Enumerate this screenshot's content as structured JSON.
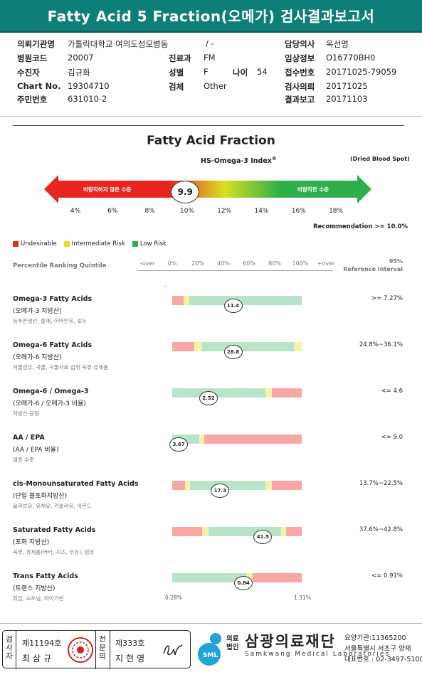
{
  "title": "Fatty Acid 5 Fraction(오메가) 검사결과보고서",
  "info": {
    "institution_label": "의뢰기관명",
    "institution": "가톨릭대학교 여의도성모병동",
    "ward_sep": "/ -",
    "doctor_label": "담당의사",
    "doctor": "옥선명",
    "hospital_code_label": "병원코드",
    "hospital_code": "20007",
    "dept_label": "진료과",
    "dept": "FM",
    "clinical_label": "임상정보",
    "clinical": "O16770BH0",
    "patient_label": "수진자",
    "patient": "김규화",
    "sex_label": "성별",
    "sex": "F",
    "age_label": "나이",
    "age": "54",
    "receipt_label": "접수번호",
    "receipt": "20171025-79059",
    "chart_label": "Chart No.",
    "chart": "19304710",
    "specimen_label": "검체",
    "specimen": "Other",
    "request_label": "검사의뢰",
    "request": "20171025",
    "ssn_label": "주민번호",
    "ssn": "631010-2",
    "report_label": "결과보고",
    "report": "20171103"
  },
  "fraction": {
    "title": "Fatty Acid Fraction",
    "subtitle": "HS-Omega-3 Index",
    "subtitle_sup": "®",
    "specimen_note": "(Dried Blood Spot)",
    "arrow_left": "바람직하지 않은 수준",
    "arrow_right": "바람직한 수준",
    "value": "9.9",
    "value_num": 9.9,
    "scale": [
      "4%",
      "6%",
      "8%",
      "10%",
      "12%",
      "14%",
      "16%",
      "18%"
    ],
    "recommendation": "Recommendation  >= 10.0%"
  },
  "legend": [
    {
      "label": "Undesirable",
      "color": "#e8251f"
    },
    {
      "label": "Intermediate Risk",
      "color": "#e3de21"
    },
    {
      "label": "Low Risk",
      "color": "#2db04b"
    }
  ],
  "percentile": {
    "label": "Percentile Ranking Quintile",
    "axis": [
      "-over",
      "0%",
      "20%",
      "40%",
      "60%",
      "80%",
      "100%",
      "+over"
    ],
    "ref_header_1": "95%",
    "ref_header_2": "Reference Interval"
  },
  "colors": {
    "red": "#f8a7a4",
    "yellow": "#f4f3a8",
    "green": "#b7e3c8",
    "arrow_red": "#e8251f",
    "arrow_yellow": "#d8e021",
    "arrow_green": "#2db04b"
  },
  "items": [
    {
      "name": "Omega-3 Fatty Acids",
      "kor": "(오메가-3 지방산)",
      "food": "등푸른생선, 들깨, 아마인유, 호두",
      "value": "11.4",
      "percentile": 47,
      "ref": ">= 7.27%",
      "segments": [
        [
          "red",
          9
        ],
        [
          "yellow",
          4
        ],
        [
          "green",
          87
        ]
      ]
    },
    {
      "name": "Omega-6 Fatty Acids",
      "kor": "(오메가-6 지방산)",
      "food": "식물성유, 곡물, 곡물사료 섭취 육류·유제품",
      "value": "28.8",
      "percentile": 47,
      "ref": "24.8%~36.1%",
      "segments": [
        [
          "red",
          17
        ],
        [
          "yellow",
          6
        ],
        [
          "green",
          71
        ],
        [
          "yellow",
          6
        ]
      ]
    },
    {
      "name": "Omega-6 / Omega-3",
      "kor": "(오메가-6 / 오메가-3 비율)",
      "food": "지방산 균형",
      "value": "2.52",
      "percentile": 28,
      "ref": "<= 4.6",
      "segments": [
        [
          "green",
          72
        ],
        [
          "yellow",
          5
        ],
        [
          "red",
          23
        ]
      ]
    },
    {
      "name": "AA / EPA",
      "kor": "(AA / EPA 비율)",
      "food": "염증 수준",
      "value": "3.67",
      "percentile": 5,
      "ref": "<= 9.0",
      "segments": [
        [
          "green",
          21
        ],
        [
          "yellow",
          4
        ],
        [
          "red",
          75
        ]
      ]
    },
    {
      "name": "cis-Monounsaturated Fatty Acids",
      "kor": "(단일 불포화지방산)",
      "food": "올리브유, 유채유, 카놀라유, 아몬드",
      "value": "17.3",
      "percentile": 37,
      "ref": "13.7%~22.5%",
      "segments": [
        [
          "red",
          10
        ],
        [
          "yellow",
          4
        ],
        [
          "green",
          58
        ],
        [
          "yellow",
          5
        ],
        [
          "red",
          23
        ]
      ]
    },
    {
      "name": "Saturated Fatty Acids",
      "kor": "(포화 지방산)",
      "food": "육류, 유제품(버터, 치즈, 우유), 팜유",
      "value": "41.5",
      "percentile": 70,
      "ref": "37.6%~42.8%",
      "segments": [
        [
          "red",
          23
        ],
        [
          "yellow",
          5
        ],
        [
          "green",
          56
        ],
        [
          "yellow",
          4
        ],
        [
          "red",
          12
        ]
      ]
    },
    {
      "name": "Trans Fatty Acids",
      "kor": "(트랜스 지방산)",
      "food": "튀김, 쇼트닝, 마아가린",
      "value": "0.84",
      "percentile": 55,
      "ref": "<= 0.91%",
      "segments": [
        [
          "green",
          57
        ],
        [
          "yellow",
          5
        ],
        [
          "red",
          38
        ]
      ]
    }
  ],
  "trans_range": {
    "min": "0.28%",
    "max": "1.31%"
  },
  "footer": {
    "exam_tag": "검사자",
    "exam_no": "제11194호",
    "exam_name": "최삼규",
    "spec_tag": "전문의",
    "spec_no": "제333호",
    "spec_name": "지현영",
    "org_small": "의료법인",
    "org_name": "삼광의료재단",
    "org_eng": "Samkwang Medical Laboratories",
    "org_logo": "SML",
    "org_code": "요양기관:11365200",
    "org_address": "서울특별시 서초구 양재",
    "org_phone": "대표번호 : 02-3497-5100"
  }
}
